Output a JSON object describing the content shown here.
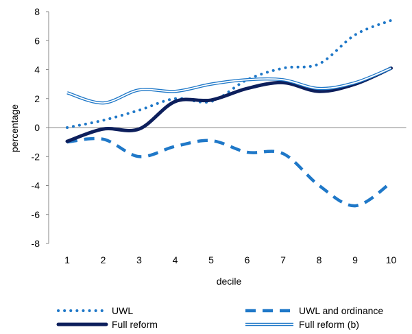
{
  "chart_data": {
    "type": "line",
    "xlabel": "decile",
    "ylabel": "percentage",
    "x": [
      1,
      2,
      3,
      4,
      5,
      6,
      7,
      8,
      9,
      10
    ],
    "ylim": [
      -8,
      8
    ],
    "y_ticks": [
      "-8",
      "-6",
      "-4",
      "-2",
      "0",
      "2",
      "4",
      "6",
      "8"
    ],
    "x_ticks": [
      "1",
      "2",
      "3",
      "4",
      "5",
      "6",
      "7",
      "8",
      "9",
      "10"
    ],
    "grid": false,
    "legend": "bottom",
    "series": [
      {
        "name": "UWL",
        "style": "dotted",
        "color": "#1f78c8",
        "values": [
          0.0,
          0.5,
          1.2,
          2.0,
          1.8,
          3.3,
          4.1,
          4.4,
          6.4,
          7.4
        ]
      },
      {
        "name": "UWL and ordinance",
        "style": "dashed",
        "color": "#1f78c8",
        "values": [
          -1.0,
          -0.8,
          -2.0,
          -1.3,
          -0.9,
          -1.7,
          -1.8,
          -4.0,
          -5.4,
          -3.8
        ]
      },
      {
        "name": "Full reform",
        "style": "solid-thick",
        "color": "#0d1f5c",
        "values": [
          -0.95,
          -0.1,
          -0.1,
          1.8,
          1.9,
          2.7,
          3.1,
          2.5,
          3.0,
          4.1
        ]
      },
      {
        "name": "Full reform (b)",
        "style": "double",
        "color": "#1f78c8",
        "values": [
          2.4,
          1.7,
          2.6,
          2.5,
          3.0,
          3.3,
          3.3,
          2.7,
          3.1,
          4.1
        ]
      }
    ]
  }
}
